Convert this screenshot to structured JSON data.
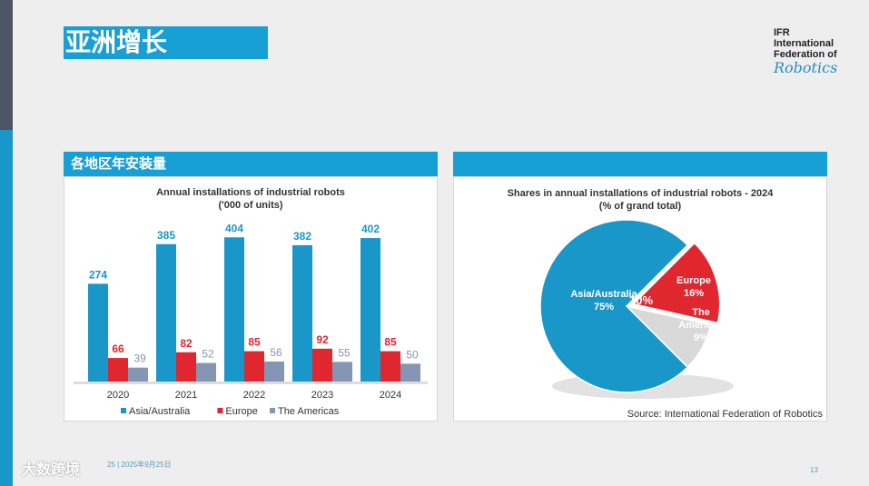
{
  "slide": {
    "title": "亚洲增长",
    "page_number": "13",
    "footer_date": "25 | 2025年9月25日",
    "watermark": "大数跨境"
  },
  "logo": {
    "line1": "IFR",
    "line2": "International",
    "line3": "Federation of",
    "line4": "Robotics"
  },
  "colors": {
    "accent": "#17a0d6",
    "asia": "#1a97c9",
    "europe": "#e0262f",
    "americas": "#8496b3"
  },
  "bar_panel": {
    "header": "各地区年安装量",
    "title_line1": "Annual installations of industrial robots",
    "title_line2": "('000 of units)"
  },
  "pie_panel": {
    "title_line1": "Shares in annual installations of industrial robots - 2024",
    "title_line2": "(% of grand total)",
    "source": "Source: International Federation of Robotics",
    "label_asia_name": "Asia/Australia",
    "label_asia_pct": "75%",
    "label_europe_name": "Europe",
    "label_europe_pct": "16%",
    "label_americas_name1": "The",
    "label_americas_name2": "Americas",
    "label_americas_pct": "9%",
    "stray_label": "10%"
  },
  "chart_data": [
    {
      "type": "bar",
      "title": "Annual installations of industrial robots ('000 of units)",
      "categories": [
        "2020",
        "2021",
        "2022",
        "2023",
        "2024"
      ],
      "series": [
        {
          "name": "Asia/Australia",
          "values": [
            274,
            385,
            404,
            382,
            402
          ]
        },
        {
          "name": "Europe",
          "values": [
            66,
            82,
            85,
            92,
            85
          ]
        },
        {
          "name": "The Americas",
          "values": [
            39,
            52,
            56,
            55,
            50
          ]
        }
      ],
      "ylim": [
        0,
        420
      ],
      "grid": false,
      "legend": "bottom"
    },
    {
      "type": "pie",
      "title": "Shares in annual installations of industrial robots - 2024 (% of grand total)",
      "categories": [
        "Asia/Australia",
        "Europe",
        "The Americas"
      ],
      "values": [
        75,
        16,
        9
      ]
    }
  ]
}
